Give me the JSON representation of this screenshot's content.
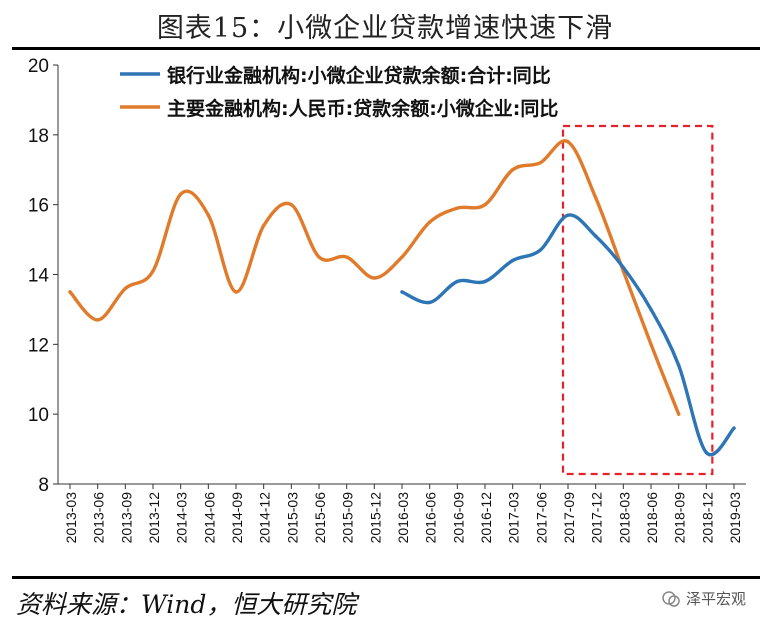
{
  "header": {
    "title": "图表15：小微企业贷款增速快速下滑"
  },
  "footer": {
    "source": "资料来源：Wind，恒大研究院",
    "watermark": "泽平宏观"
  },
  "colors": {
    "series_blue": "#2E75B6",
    "series_orange": "#E07B2B",
    "highlight_box": "#E8202A"
  },
  "chart_data": {
    "type": "line",
    "categories": [
      "2013-03",
      "2013-06",
      "2013-09",
      "2013-12",
      "2014-03",
      "2014-06",
      "2014-09",
      "2014-12",
      "2015-03",
      "2015-06",
      "2015-09",
      "2015-12",
      "2016-03",
      "2016-06",
      "2016-09",
      "2016-12",
      "2017-03",
      "2017-06",
      "2017-09",
      "2017-12",
      "2018-03",
      "2018-06",
      "2018-09",
      "2018-12",
      "2019-03"
    ],
    "ylim": [
      8,
      20
    ],
    "yticks": [
      8,
      10,
      12,
      14,
      16,
      18,
      20
    ],
    "grid": false,
    "legend_position": "top",
    "series": [
      {
        "name": "银行业金融机构:小微企业贷款余额:合计:同比",
        "color": "#2E75B6",
        "values": [
          null,
          null,
          null,
          null,
          null,
          null,
          null,
          null,
          null,
          null,
          null,
          null,
          13.5,
          13.2,
          13.8,
          13.8,
          14.4,
          14.7,
          15.7,
          15.1,
          14.2,
          13.0,
          11.4,
          8.9,
          9.6
        ]
      },
      {
        "name": "主要金融机构:人民币:贷款余额:小微企业:同比",
        "color": "#E07B2B",
        "values": [
          13.5,
          12.7,
          13.6,
          14.1,
          16.3,
          15.7,
          13.5,
          15.4,
          16.0,
          14.5,
          14.5,
          13.9,
          14.5,
          15.5,
          15.9,
          16.0,
          17.0,
          17.2,
          17.8,
          16.2,
          14.1,
          12.0,
          10.0,
          null,
          null
        ]
      }
    ],
    "highlight_range": [
      "2017-09",
      "2018-12"
    ]
  }
}
